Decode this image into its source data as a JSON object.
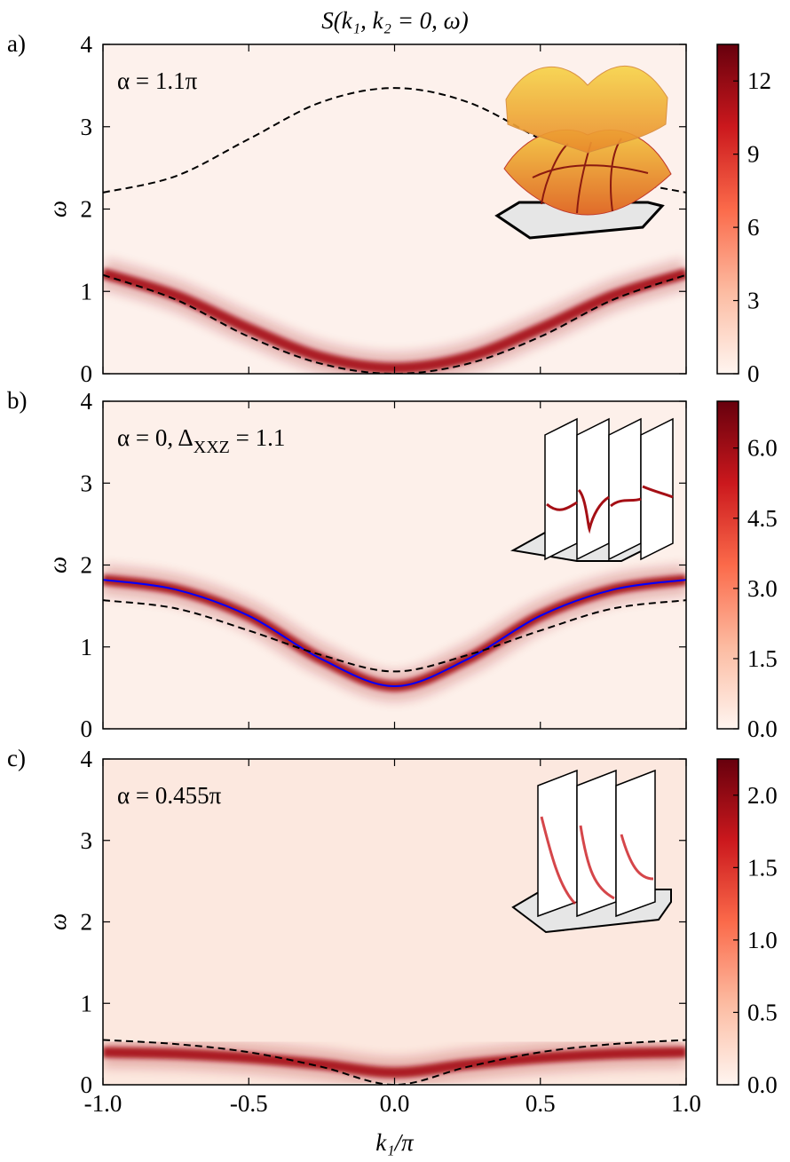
{
  "chart_data": [
    {
      "type": "heatmap",
      "title": "S(k₁, k₂ = 0, ω)",
      "panel_label": "a)",
      "annotation": [
        "α = 1.1π"
      ],
      "ylabel": "ω",
      "background": "#fdf1ec",
      "xlim": [
        -1,
        1
      ],
      "ylim": [
        0,
        4
      ],
      "xticks": [
        -1,
        -0.5,
        0,
        0.5,
        1
      ],
      "yticks": [
        0,
        1,
        2,
        3,
        4
      ],
      "colorbar": {
        "clim": [
          0,
          13.5
        ],
        "ticks": [
          0,
          3,
          6,
          9,
          12
        ],
        "colors": [
          "#fff5f0",
          "#fcbba1",
          "#fb6a4a",
          "#cb181d",
          "#67000d"
        ]
      },
      "x": [
        -1,
        -0.75,
        -0.5,
        -0.25,
        0,
        0.25,
        0.5,
        0.75,
        1
      ],
      "series": [
        {
          "style": "band",
          "color": "#a50f15",
          "values": [
            1.22,
            0.95,
            0.55,
            0.2,
            0.07,
            0.2,
            0.55,
            0.95,
            1.22
          ]
        },
        {
          "style": "dashed",
          "color": "#000000",
          "values": [
            2.2,
            2.4,
            2.85,
            3.3,
            3.47,
            3.3,
            2.85,
            2.4,
            2.2
          ]
        },
        {
          "style": "dashed",
          "color": "#000000",
          "values": [
            1.2,
            0.9,
            0.45,
            0.12,
            0,
            0.12,
            0.45,
            0.9,
            1.2
          ]
        }
      ]
    },
    {
      "type": "heatmap",
      "panel_label": "b)",
      "annotation": [
        "α = 0, Δ",
        "XXZ",
        " = 1.1"
      ],
      "ylabel": "ω",
      "background": "#fdf0ea",
      "xlim": [
        -1,
        1
      ],
      "ylim": [
        0,
        4
      ],
      "xticks": [
        -1,
        -0.5,
        0,
        0.5,
        1
      ],
      "yticks": [
        0,
        1,
        2,
        3,
        4
      ],
      "colorbar": {
        "clim": [
          0,
          7
        ],
        "ticks": [
          {
            "value": 0,
            "label": "0.0"
          },
          1.5,
          {
            "value": 3,
            "label": "3.0"
          },
          4.5,
          {
            "value": 6,
            "label": "6.0"
          }
        ],
        "colors": [
          "#fff5f0",
          "#fcbba1",
          "#fb6a4a",
          "#cb181d",
          "#67000d"
        ]
      },
      "x": [
        -1,
        -0.75,
        -0.5,
        -0.25,
        0,
        0.25,
        0.5,
        0.75,
        1
      ],
      "series": [
        {
          "style": "band",
          "color": "#a50f15",
          "values": [
            1.82,
            1.7,
            1.38,
            0.85,
            0.52,
            0.85,
            1.38,
            1.7,
            1.82
          ]
        },
        {
          "style": "solid",
          "color": "#0000ff",
          "values": [
            1.82,
            1.7,
            1.38,
            0.85,
            0.52,
            0.85,
            1.38,
            1.7,
            1.82
          ]
        },
        {
          "style": "dashed",
          "color": "#000000",
          "values": [
            1.57,
            1.47,
            1.2,
            0.9,
            0.7,
            0.9,
            1.2,
            1.47,
            1.57
          ]
        }
      ]
    },
    {
      "type": "heatmap",
      "panel_label": "c)",
      "annotation": [
        "α = 0.455π"
      ],
      "ylabel": "ω",
      "xlabel": "k₁/π",
      "background": "#fce8df",
      "xlim": [
        -1,
        1
      ],
      "ylim": [
        0,
        4
      ],
      "xticks": [
        {
          "value": -1,
          "label": "-1.0"
        },
        {
          "value": -0.5,
          "label": "-0.5"
        },
        {
          "value": 0,
          "label": "0.0"
        },
        {
          "value": 0.5,
          "label": "0.5"
        },
        {
          "value": 1,
          "label": "1.0"
        }
      ],
      "yticks": [
        0,
        1,
        2,
        3,
        4
      ],
      "colorbar": {
        "clim": [
          0,
          2.25
        ],
        "ticks": [
          {
            "value": 0,
            "label": "0.0"
          },
          0.5,
          {
            "value": 1,
            "label": "1.0"
          },
          1.5,
          {
            "value": 2,
            "label": "2.0"
          }
        ],
        "colors": [
          "#fff5f0",
          "#fcbba1",
          "#fb6a4a",
          "#cb181d",
          "#67000d"
        ]
      },
      "x": [
        -1,
        -0.75,
        -0.5,
        -0.25,
        0,
        0.25,
        0.5,
        0.75,
        1
      ],
      "series": [
        {
          "style": "band",
          "color": "#a50f15",
          "values": [
            0.4,
            0.38,
            0.33,
            0.25,
            0.15,
            0.25,
            0.33,
            0.38,
            0.4
          ]
        },
        {
          "style": "dashed",
          "color": "#000000",
          "values": [
            0.55,
            0.5,
            0.4,
            0.22,
            0,
            0.22,
            0.4,
            0.5,
            0.55
          ]
        }
      ]
    }
  ]
}
